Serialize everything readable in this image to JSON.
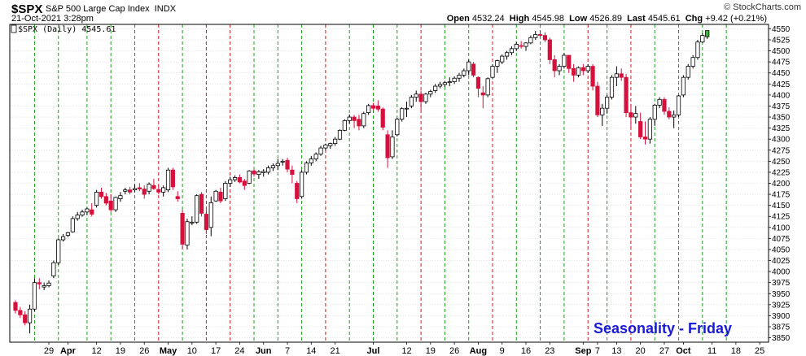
{
  "header": {
    "symbol": "$SPX",
    "name": "S&P 500 Large Cap Index",
    "exchange": "INDX",
    "watermark": "© StockCharts.com",
    "date": "21-Oct-2021 3:28pm",
    "open_label": "Open",
    "open": "4532.24",
    "high_label": "High",
    "high": "4545.98",
    "low_label": "Low",
    "low": "4526.89",
    "last_label": "Last",
    "last": "4545.61",
    "chg_label": "Chg",
    "chg": "+9.42 (+0.21%)"
  },
  "chart_data": {
    "type": "candlestick",
    "legend": "$SPX (Daily) 4545.61",
    "annotation": "Seasonality - Friday",
    "colors": {
      "up": "#ffffff",
      "down": "#d6103c",
      "outline": "#000000",
      "last_up": "#2fbf2f",
      "friday_up_line": "#1aa01a",
      "friday_down_line": "#d61818"
    },
    "ylim": [
      3840,
      4560
    ],
    "yticks": [
      3850,
      3875,
      3900,
      3925,
      3950,
      3975,
      4000,
      4025,
      4050,
      4075,
      4100,
      4125,
      4150,
      4175,
      4200,
      4225,
      4250,
      4275,
      4300,
      4325,
      4350,
      4375,
      4400,
      4425,
      4450,
      4475,
      4500,
      4525,
      4550
    ],
    "x_labels": [
      {
        "t": "29",
        "i": 7,
        "bold": false
      },
      {
        "t": "Apr",
        "i": 11,
        "bold": true
      },
      {
        "t": "12",
        "i": 17,
        "bold": false
      },
      {
        "t": "19",
        "i": 22,
        "bold": false
      },
      {
        "t": "26",
        "i": 27,
        "bold": false
      },
      {
        "t": "May",
        "i": 32,
        "bold": true
      },
      {
        "t": "10",
        "i": 37,
        "bold": false
      },
      {
        "t": "17",
        "i": 42,
        "bold": false
      },
      {
        "t": "24",
        "i": 47,
        "bold": false
      },
      {
        "t": "Jun",
        "i": 52,
        "bold": true
      },
      {
        "t": "7",
        "i": 57,
        "bold": false
      },
      {
        "t": "14",
        "i": 62,
        "bold": false
      },
      {
        "t": "21",
        "i": 67,
        "bold": false
      },
      {
        "t": "Jul",
        "i": 75,
        "bold": true
      },
      {
        "t": "12",
        "i": 82,
        "bold": false
      },
      {
        "t": "19",
        "i": 87,
        "bold": false
      },
      {
        "t": "26",
        "i": 92,
        "bold": false
      },
      {
        "t": "Aug",
        "i": 97,
        "bold": true
      },
      {
        "t": "9",
        "i": 102,
        "bold": false
      },
      {
        "t": "16",
        "i": 107,
        "bold": false
      },
      {
        "t": "23",
        "i": 112,
        "bold": false
      },
      {
        "t": "Sep",
        "i": 119,
        "bold": true
      },
      {
        "t": "7",
        "i": 122,
        "bold": false
      },
      {
        "t": "13",
        "i": 126,
        "bold": false
      },
      {
        "t": "20",
        "i": 131,
        "bold": false
      },
      {
        "t": "27",
        "i": 136,
        "bold": false
      },
      {
        "t": "Oct",
        "i": 140,
        "bold": true
      },
      {
        "t": "11",
        "i": 146,
        "bold": false
      },
      {
        "t": "18",
        "i": 151,
        "bold": false
      },
      {
        "t": "25",
        "i": 156,
        "bold": false
      }
    ],
    "fridays": [
      {
        "i": 4,
        "up": true
      },
      {
        "i": 9,
        "up": true
      },
      {
        "i": 15,
        "up": true
      },
      {
        "i": 20,
        "up": true
      },
      {
        "i": 25,
        "up": true
      },
      {
        "i": 30,
        "down": true
      },
      {
        "i": 35,
        "up": true
      },
      {
        "i": 40,
        "down": true
      },
      {
        "i": 45,
        "down": true
      },
      {
        "i": 50,
        "up": true
      },
      {
        "i": 55,
        "up": true
      },
      {
        "i": 60,
        "up": true
      },
      {
        "i": 65,
        "down": true
      },
      {
        "i": 70,
        "up": true
      },
      {
        "i": 75,
        "up": true
      },
      {
        "i": 80,
        "up": true
      },
      {
        "i": 85,
        "down": true
      },
      {
        "i": 90,
        "up": true
      },
      {
        "i": 95,
        "up": true
      },
      {
        "i": 100,
        "down": true
      },
      {
        "i": 105,
        "up": true
      },
      {
        "i": 110,
        "up": true
      },
      {
        "i": 115,
        "up": true
      },
      {
        "i": 120,
        "down": true
      },
      {
        "i": 124,
        "up": true
      },
      {
        "i": 129,
        "down": true
      },
      {
        "i": 134,
        "up": true
      },
      {
        "i": 139,
        "up": true
      },
      {
        "i": 144,
        "up": true
      },
      {
        "i": 149,
        "up": true
      }
    ],
    "candles": [
      [
        3930,
        3935,
        3905,
        3912
      ],
      [
        3912,
        3920,
        3895,
        3902
      ],
      [
        3902,
        3910,
        3878,
        3884
      ],
      [
        3884,
        3925,
        3860,
        3915
      ],
      [
        3915,
        3985,
        3910,
        3975
      ],
      [
        3975,
        3985,
        3960,
        3972
      ],
      [
        3965,
        3975,
        3958,
        3968
      ],
      [
        3968,
        3980,
        3964,
        3974
      ],
      [
        3990,
        4025,
        3985,
        4020
      ],
      [
        4020,
        4075,
        4015,
        4072
      ],
      [
        4072,
        4085,
        4068,
        4079
      ],
      [
        4082,
        4090,
        4078,
        4088
      ],
      [
        4090,
        4125,
        4088,
        4120
      ],
      [
        4120,
        4135,
        4115,
        4128
      ],
      [
        4128,
        4140,
        4124,
        4135
      ],
      [
        4135,
        4145,
        4128,
        4142
      ],
      [
        4140,
        4155,
        4125,
        4130
      ],
      [
        4150,
        4185,
        4145,
        4180
      ],
      [
        4180,
        4190,
        4165,
        4170
      ],
      [
        4170,
        4178,
        4150,
        4155
      ],
      [
        4160,
        4175,
        4135,
        4140
      ],
      [
        4140,
        4170,
        4135,
        4168
      ],
      [
        4165,
        4180,
        4158,
        4172
      ],
      [
        4182,
        4190,
        4175,
        4185
      ],
      [
        4185,
        4192,
        4175,
        4180
      ],
      [
        4185,
        4198,
        4180,
        4188
      ],
      [
        4190,
        4200,
        4182,
        4187
      ],
      [
        4187,
        4195,
        4165,
        4175
      ],
      [
        4182,
        4202,
        4175,
        4198
      ],
      [
        4195,
        4210,
        4185,
        4188
      ],
      [
        4186,
        4195,
        4175,
        4180
      ],
      [
        4180,
        4195,
        4170,
        4190
      ],
      [
        4185,
        4235,
        4180,
        4230
      ],
      [
        4230,
        4235,
        4185,
        4192
      ],
      [
        4170,
        4182,
        4158,
        4165
      ],
      [
        4132,
        4140,
        4050,
        4062
      ],
      [
        4060,
        4120,
        4050,
        4113
      ],
      [
        4110,
        4125,
        4105,
        4112
      ],
      [
        4112,
        4175,
        4108,
        4172
      ],
      [
        4175,
        4180,
        4125,
        4132
      ],
      [
        4130,
        4140,
        4085,
        4095
      ],
      [
        4100,
        4170,
        4080,
        4156
      ],
      [
        4160,
        4185,
        4158,
        4182
      ],
      [
        4180,
        4190,
        4155,
        4160
      ],
      [
        4165,
        4205,
        4160,
        4200
      ],
      [
        4200,
        4215,
        4192,
        4208
      ],
      [
        4208,
        4218,
        4203,
        4213
      ],
      [
        4213,
        4220,
        4200,
        4203
      ],
      [
        4205,
        4210,
        4185,
        4195
      ],
      [
        4200,
        4230,
        4198,
        4228
      ],
      [
        4228,
        4232,
        4215,
        4221
      ],
      [
        4220,
        4230,
        4210,
        4226
      ],
      [
        4224,
        4232,
        4215,
        4227
      ],
      [
        4225,
        4240,
        4220,
        4235
      ],
      [
        4235,
        4245,
        4228,
        4240
      ],
      [
        4240,
        4255,
        4230,
        4245
      ],
      [
        4248,
        4255,
        4240,
        4250
      ],
      [
        4252,
        4258,
        4225,
        4232
      ],
      [
        4230,
        4240,
        4200,
        4220
      ],
      [
        4200,
        4205,
        4155,
        4165
      ],
      [
        4170,
        4230,
        4165,
        4225
      ],
      [
        4225,
        4250,
        4220,
        4246
      ],
      [
        4246,
        4262,
        4240,
        4255
      ],
      [
        4255,
        4270,
        4250,
        4266
      ],
      [
        4266,
        4285,
        4262,
        4280
      ],
      [
        4280,
        4290,
        4275,
        4287
      ],
      [
        4285,
        4292,
        4278,
        4290
      ],
      [
        4290,
        4305,
        4285,
        4300
      ],
      [
        4300,
        4322,
        4298,
        4320
      ],
      [
        4320,
        4345,
        4318,
        4342
      ],
      [
        4342,
        4356,
        4335,
        4350
      ],
      [
        4350,
        4355,
        4325,
        4342
      ],
      [
        4345,
        4355,
        4320,
        4330
      ],
      [
        4330,
        4362,
        4325,
        4358
      ],
      [
        4360,
        4380,
        4355,
        4376
      ],
      [
        4376,
        4382,
        4365,
        4370
      ],
      [
        4375,
        4388,
        4362,
        4368
      ],
      [
        4368,
        4372,
        4320,
        4327
      ],
      [
        4310,
        4320,
        4235,
        4258
      ],
      [
        4260,
        4320,
        4255,
        4305
      ],
      [
        4310,
        4348,
        4306,
        4345
      ],
      [
        4345,
        4372,
        4340,
        4369
      ],
      [
        4370,
        4385,
        4350,
        4370
      ],
      [
        4375,
        4400,
        4370,
        4395
      ],
      [
        4395,
        4410,
        4385,
        4402
      ],
      [
        4402,
        4410,
        4365,
        4385
      ],
      [
        4385,
        4405,
        4380,
        4402
      ],
      [
        4402,
        4412,
        4395,
        4408
      ],
      [
        4410,
        4425,
        4405,
        4420
      ],
      [
        4420,
        4430,
        4415,
        4424
      ],
      [
        4424,
        4432,
        4418,
        4428
      ],
      [
        4428,
        4440,
        4420,
        4430
      ],
      [
        4430,
        4442,
        4425,
        4438
      ],
      [
        4438,
        4450,
        4430,
        4445
      ],
      [
        4445,
        4460,
        4440,
        4455
      ],
      [
        4455,
        4480,
        4445,
        4475
      ],
      [
        4470,
        4475,
        4440,
        4445
      ],
      [
        4440,
        4442,
        4395,
        4415
      ],
      [
        4405,
        4420,
        4370,
        4400
      ],
      [
        4400,
        4440,
        4395,
        4437
      ],
      [
        4440,
        4470,
        4436,
        4465
      ],
      [
        4465,
        4480,
        4450,
        4478
      ],
      [
        4475,
        4492,
        4470,
        4488
      ],
      [
        4488,
        4500,
        4480,
        4496
      ],
      [
        4496,
        4510,
        4490,
        4505
      ],
      [
        4505,
        4520,
        4500,
        4515
      ],
      [
        4512,
        4522,
        4505,
        4510
      ],
      [
        4510,
        4520,
        4500,
        4518
      ],
      [
        4518,
        4535,
        4515,
        4530
      ],
      [
        4530,
        4545,
        4525,
        4537
      ],
      [
        4537,
        4545,
        4530,
        4535
      ],
      [
        4535,
        4542,
        4520,
        4525
      ],
      [
        4525,
        4530,
        4470,
        4480
      ],
      [
        4480,
        4490,
        4440,
        4455
      ],
      [
        4455,
        4470,
        4445,
        4465
      ],
      [
        4465,
        4495,
        4460,
        4490
      ],
      [
        4490,
        4490,
        4450,
        4460
      ],
      [
        4460,
        4470,
        4430,
        4445
      ],
      [
        4445,
        4465,
        4440,
        4462
      ],
      [
        4462,
        4470,
        4445,
        4455
      ],
      [
        4455,
        4470,
        4450,
        4465
      ],
      [
        4465,
        4470,
        4410,
        4420
      ],
      [
        4420,
        4430,
        4350,
        4355
      ],
      [
        4355,
        4380,
        4330,
        4370
      ],
      [
        4370,
        4400,
        4358,
        4395
      ],
      [
        4395,
        4445,
        4390,
        4440
      ],
      [
        4440,
        4465,
        4420,
        4448
      ],
      [
        4448,
        4460,
        4432,
        4440
      ],
      [
        4440,
        4448,
        4350,
        4360
      ],
      [
        4360,
        4380,
        4325,
        4350
      ],
      [
        4350,
        4375,
        4335,
        4358
      ],
      [
        4340,
        4360,
        4300,
        4305
      ],
      [
        4305,
        4340,
        4288,
        4300
      ],
      [
        4300,
        4350,
        4290,
        4345
      ],
      [
        4345,
        4380,
        4330,
        4377
      ],
      [
        4377,
        4395,
        4370,
        4390
      ],
      [
        4390,
        4395,
        4355,
        4363
      ],
      [
        4363,
        4372,
        4345,
        4350
      ],
      [
        4350,
        4365,
        4325,
        4355
      ],
      [
        4355,
        4400,
        4350,
        4398
      ],
      [
        4400,
        4445,
        4395,
        4440
      ],
      [
        4440,
        4470,
        4435,
        4465
      ],
      [
        4465,
        4490,
        4460,
        4485
      ],
      [
        4485,
        4525,
        4480,
        4520
      ],
      [
        4520,
        4540,
        4518,
        4535
      ],
      [
        4532,
        4546,
        4527,
        4546
      ]
    ]
  }
}
